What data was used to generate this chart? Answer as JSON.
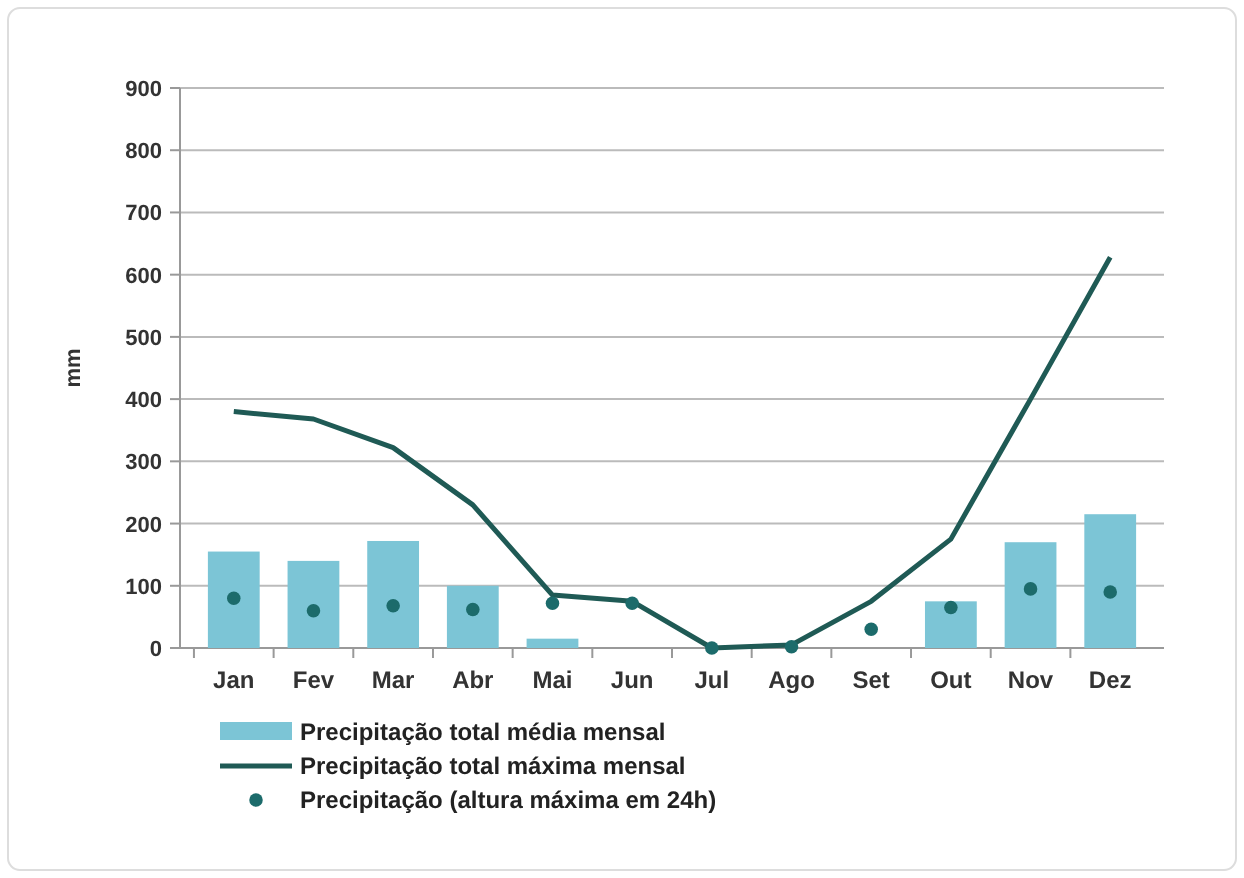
{
  "chart_data": {
    "type": "bar",
    "ylabel": "mm",
    "categories": [
      "Jan",
      "Fev",
      "Mar",
      "Abr",
      "Mai",
      "Jun",
      "Jul",
      "Ago",
      "Set",
      "Out",
      "Nov",
      "Dez"
    ],
    "series": [
      {
        "name": "Precipitação total média mensal",
        "color": "#7cc5d6",
        "values": [
          155,
          140,
          172,
          100,
          15,
          0,
          0,
          0,
          0,
          75,
          170,
          215
        ]
      },
      {
        "name": "Precipitação total máxima mensal",
        "type": "line",
        "color": "#1f5a55",
        "values": [
          380,
          368,
          322,
          230,
          85,
          75,
          0,
          5,
          75,
          175,
          400,
          628
        ]
      },
      {
        "name": "Precipitação (altura máxima em 24h)",
        "type": "scatter",
        "color": "#1c6b6b",
        "marker": "circle",
        "values": [
          80,
          60,
          68,
          62,
          72,
          72,
          0,
          2,
          30,
          65,
          95,
          90
        ]
      }
    ],
    "ylim": [
      0,
      900
    ],
    "yticks": [
      0,
      100,
      200,
      300,
      400,
      500,
      600,
      700,
      800,
      900
    ],
    "grid": "y",
    "legend": "bottom"
  }
}
